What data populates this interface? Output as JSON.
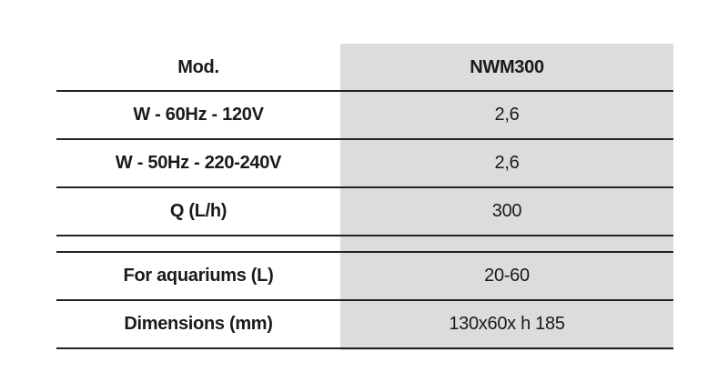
{
  "table": {
    "header": [
      "Mod.",
      "NWM300"
    ],
    "sections": [
      [
        [
          "W - 60Hz - 120V",
          "2,6"
        ],
        [
          "W - 50Hz - 220-240V",
          "2,6"
        ],
        [
          "Q (L/h)",
          "300"
        ]
      ],
      [
        [
          "For aquariums (L)",
          "20-60"
        ],
        [
          "Dimensions (mm)",
          "130x60x h 185"
        ]
      ]
    ]
  }
}
